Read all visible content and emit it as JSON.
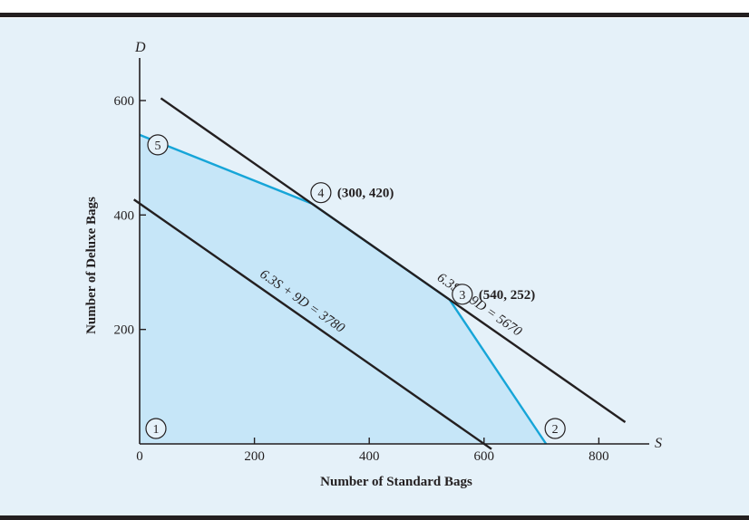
{
  "chart_data": {
    "type": "line",
    "xlabel": "Number of Standard Bags",
    "ylabel": "Number of Deluxe Bags",
    "x_var": "S",
    "y_var": "D",
    "xlim": [
      0,
      870
    ],
    "ylim": [
      0,
      670
    ],
    "x_ticks": [
      0,
      200,
      400,
      600,
      800
    ],
    "y_ticks": [
      200,
      400,
      600
    ],
    "x_tick_labels": [
      "0",
      "200",
      "400",
      "600",
      "800"
    ],
    "y_tick_labels": [
      "200",
      "400",
      "600"
    ],
    "grid": false,
    "feasible_region": {
      "fill": "#c6e6f8",
      "boundary_color": "#16a5d8",
      "vertices": [
        [
          0,
          0
        ],
        [
          708,
          0
        ],
        [
          540,
          252
        ],
        [
          300,
          420
        ],
        [
          0,
          540
        ]
      ]
    },
    "lines": [
      {
        "label": "6.3S + 9D = 3780",
        "x": [
          -10,
          613
        ],
        "y": [
          427,
          -9
        ],
        "color": "#231f20"
      },
      {
        "label": "6.3S + 9D = 5670",
        "x": [
          37,
          846
        ],
        "y": [
          604,
          38
        ],
        "color": "#231f20"
      }
    ],
    "points": [
      {
        "number": "1",
        "x": 0,
        "y": 0
      },
      {
        "number": "2",
        "x": 708,
        "y": 0
      },
      {
        "number": "3",
        "x": 540,
        "y": 252,
        "coord_label": "(540, 252)"
      },
      {
        "number": "4",
        "x": 300,
        "y": 420,
        "coord_label": "(300, 420)"
      },
      {
        "number": "5",
        "x": 0,
        "y": 540
      }
    ]
  }
}
